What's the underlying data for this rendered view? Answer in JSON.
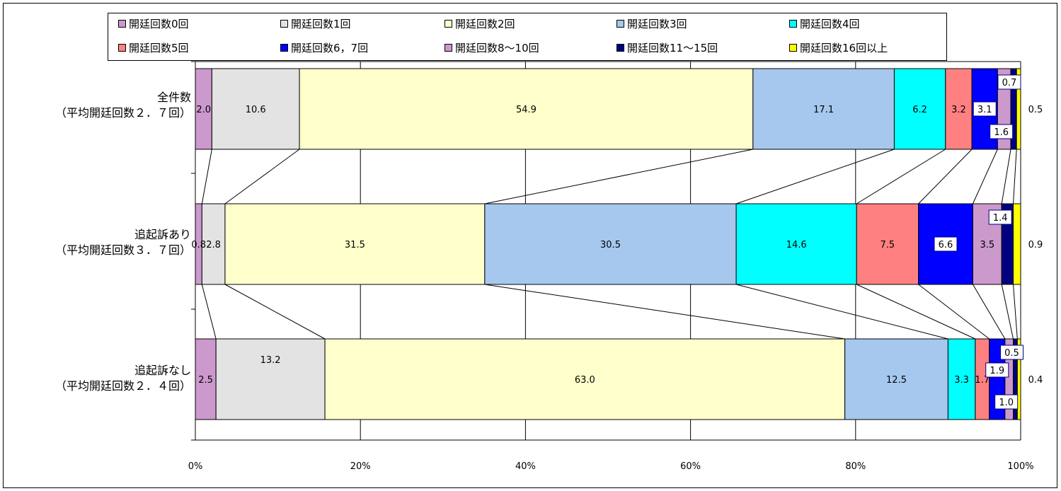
{
  "chart_data": {
    "type": "bar",
    "orientation": "horizontal",
    "stacked": "percent",
    "legend_position": "top",
    "grid": true,
    "xlim": [
      0,
      100
    ],
    "x_ticks": [
      "0%",
      "20%",
      "40%",
      "60%",
      "80%",
      "100%"
    ],
    "categories": [
      {
        "line1": "全件数",
        "line2": "（平均開廷回数２．７回）"
      },
      {
        "line1": "追起訴あり",
        "line2": "（平均開廷回数３．７回）"
      },
      {
        "line1": "追起訴なし",
        "line2": "（平均開廷回数２．４回）"
      }
    ],
    "series": [
      {
        "name": "開廷回数0回",
        "color": "#cc99cc",
        "values": [
          2.0,
          0.8,
          2.5
        ]
      },
      {
        "name": "開廷回数1回",
        "color": "#e3e3e3",
        "values": [
          10.6,
          2.8,
          13.2
        ]
      },
      {
        "name": "開廷回数2回",
        "color": "#ffffcc",
        "values": [
          54.9,
          31.5,
          63.0
        ]
      },
      {
        "name": "開廷回数3回",
        "color": "#a6c8ee",
        "values": [
          17.1,
          30.5,
          12.5
        ]
      },
      {
        "name": "開廷回数4回",
        "color": "#00ffff",
        "values": [
          6.2,
          14.6,
          3.3
        ]
      },
      {
        "name": "開廷回数5回",
        "color": "#ff8080",
        "values": [
          3.2,
          7.5,
          1.7
        ]
      },
      {
        "name": "開廷回数6，7回",
        "color": "#0000ff",
        "values": [
          3.1,
          6.6,
          1.9
        ]
      },
      {
        "name": "開廷回数8～10回",
        "color": "#cc99cc",
        "values": [
          1.6,
          3.5,
          1.0
        ]
      },
      {
        "name": "開廷回数11～15回",
        "color": "#000080",
        "values": [
          0.7,
          1.4,
          0.5
        ]
      },
      {
        "name": "開廷回数16回以上",
        "color": "#ffff00",
        "values": [
          0.5,
          0.9,
          0.4
        ]
      }
    ],
    "data_labels": [
      [
        "2.0",
        "10.6",
        "54.9",
        "17.1",
        "6.2",
        "3.2",
        "3.1",
        "1.6",
        "0.7",
        "0.5"
      ],
      [
        "0.8",
        "2.8",
        "31.5",
        "30.5",
        "14.6",
        "7.5",
        "6.6",
        "3.5",
        "1.4",
        "0.9"
      ],
      [
        "2.5",
        "13.2",
        "63.0",
        "12.5",
        "3.3",
        "1.7",
        "1.9",
        "1.0",
        "0.5",
        "0.4"
      ]
    ]
  }
}
